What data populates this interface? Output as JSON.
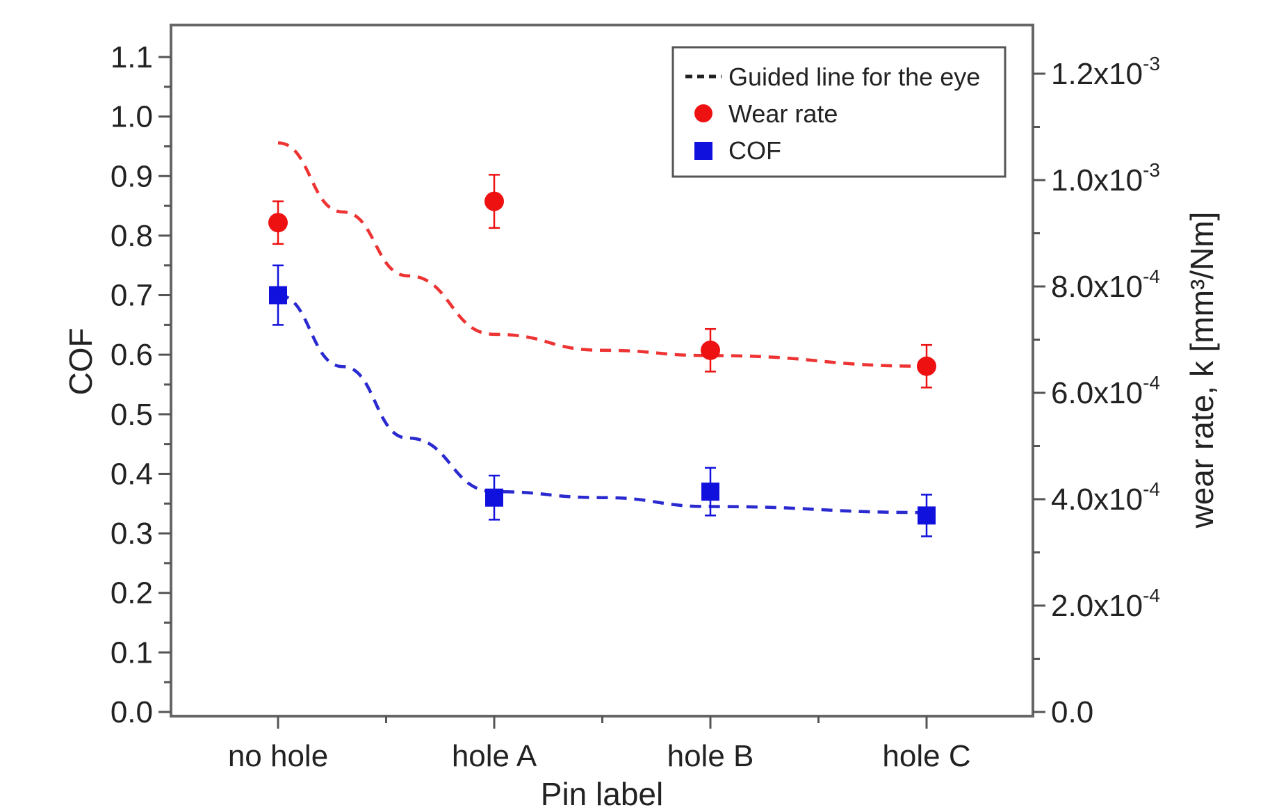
{
  "chart_data": {
    "type": "scatter",
    "xlabel": "Pin label",
    "ylabel_left": "COF",
    "ylabel_right": "wear rate, k [mm³/Nm]",
    "categories": [
      "no hole",
      "hole A",
      "hole B",
      "hole C"
    ],
    "ylim_left": [
      0.0,
      1.12
    ],
    "ylim_right": [
      0.0,
      0.00125
    ],
    "left_ticks": [
      {
        "value": 0.0,
        "label": "0.0"
      },
      {
        "value": 0.1,
        "label": "0.1"
      },
      {
        "value": 0.2,
        "label": "0.2"
      },
      {
        "value": 0.3,
        "label": "0.3"
      },
      {
        "value": 0.4,
        "label": "0.4"
      },
      {
        "value": 0.5,
        "label": "0.5"
      },
      {
        "value": 0.6,
        "label": "0.6"
      },
      {
        "value": 0.7,
        "label": "0.7"
      },
      {
        "value": 0.8,
        "label": "0.8"
      },
      {
        "value": 0.9,
        "label": "0.9"
      },
      {
        "value": 1.0,
        "label": "1.0"
      },
      {
        "value": 1.1,
        "label": "1.1"
      }
    ],
    "right_ticks": [
      {
        "value": 0.0,
        "mantissa": "0.0",
        "exp": ""
      },
      {
        "value": 0.0002,
        "mantissa": "2.0x10",
        "exp": "-4"
      },
      {
        "value": 0.0004,
        "mantissa": "4.0x10",
        "exp": "-4"
      },
      {
        "value": 0.0006,
        "mantissa": "6.0x10",
        "exp": "-4"
      },
      {
        "value": 0.0008,
        "mantissa": "8.0x10",
        "exp": "-4"
      },
      {
        "value": 0.001,
        "mantissa": "1.0x10",
        "exp": "-3"
      },
      {
        "value": 0.0012,
        "mantissa": "1.2x10",
        "exp": "-3"
      }
    ],
    "series": [
      {
        "name": "Wear rate",
        "axis": "right",
        "marker": "circle",
        "color": "#ee1111",
        "values": [
          0.00092,
          0.00096,
          0.00068,
          0.00065
        ],
        "errors": [
          4e-05,
          5e-05,
          4e-05,
          4e-05
        ]
      },
      {
        "name": "COF",
        "axis": "left",
        "marker": "square",
        "color": "#1111dd",
        "values": [
          0.7,
          0.36,
          0.37,
          0.33
        ],
        "errors": [
          0.05,
          0.037,
          0.04,
          0.035
        ]
      }
    ],
    "guide_lines": [
      {
        "color": "#ee3333",
        "axis": "right",
        "points": [
          [
            0,
            0.00107
          ],
          [
            0.3,
            0.00094
          ],
          [
            0.6,
            0.00082
          ],
          [
            1.0,
            0.00071
          ],
          [
            1.5,
            0.00068
          ],
          [
            2.0,
            0.00067
          ],
          [
            3.0,
            0.00065
          ]
        ]
      },
      {
        "color": "#2a2ad0",
        "axis": "left",
        "points": [
          [
            0,
            0.7
          ],
          [
            0.3,
            0.58
          ],
          [
            0.6,
            0.46
          ],
          [
            1.0,
            0.37
          ],
          [
            1.5,
            0.36
          ],
          [
            2.0,
            0.345
          ],
          [
            3.0,
            0.335
          ]
        ]
      }
    ],
    "legend": {
      "position": "top-right",
      "items": [
        {
          "label": "Guided line for the eye",
          "symbol": "dashed-line",
          "color": "#222222"
        },
        {
          "label": "Wear rate",
          "symbol": "circle",
          "color": "#ee1111"
        },
        {
          "label": "COF",
          "symbol": "square",
          "color": "#1111dd"
        }
      ]
    },
    "grid": false
  }
}
